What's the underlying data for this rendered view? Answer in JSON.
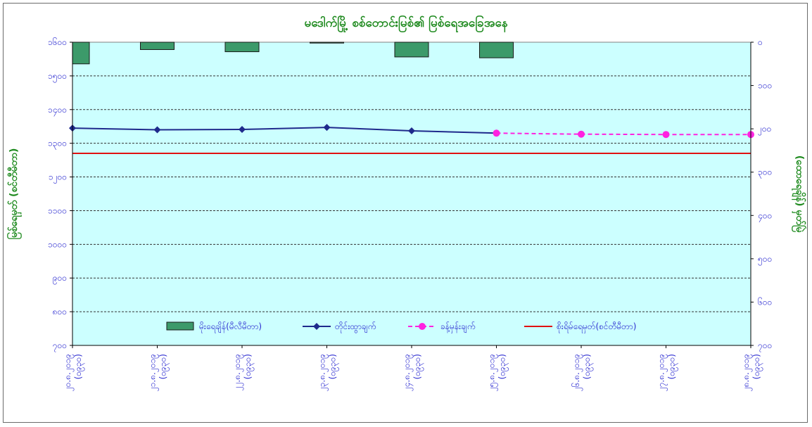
{
  "chart_data": {
    "type": "bar",
    "title": "မဒေါက်မြို့ စစ်တောင်းမြစ်၏ မြစ်ရေအခြေအနေ",
    "ylabel": "မြစ်ရေမှတ် (စင်တီမီတာ)",
    "y2label": "(ထောရေချိန်) မှတ်မြဲ",
    "ylim": [
      700,
      1600
    ],
    "y2lim": [
      0,
      700
    ],
    "y2_inverted": true,
    "yticks": [
      "၁၆၀၀",
      "၁၅၀၀",
      "၁၄၀၀",
      "၁၃၀၀",
      "၁၂၀၀",
      "၁၁၀၀",
      "၁၀၀၀",
      "၉၀၀",
      "၈၀၀",
      "၇၀၀"
    ],
    "y2ticks": [
      "၀",
      "၁၀၀",
      "၂၀၀",
      "၃၀၀",
      "၄၀၀",
      "၅၀၀",
      "၆၀၀",
      "၇၀၀"
    ],
    "categories": [
      "၂၀.၈.၂၀၁၉ (၀၉၃၀)",
      "၂၁.၈.၂၀၁၉ (၀၉၃၀)",
      "၂၂.၈.၂၀၁၉ (၀၉၃၀)",
      "၂၃.၈.၂၀၁၉ (၀၉၃၀)",
      "၂၄.၈.၂၀၁၉ (၀၉၃၀)",
      "၂၅.၈.၂၀၁၉ (၀၉၃၀)",
      "၂၆.၈.၂၀၁၉ (၀၉၃၀)",
      "၂၇.၈.၂၀၁၉ (၀၉၃၀)",
      "၂၈.၈.၂၀၁၉ (၀၉၃၀)"
    ],
    "series": [
      {
        "name": "မိုးရေချိန်(မီလီမီတာ)",
        "type": "bar",
        "axis": "right",
        "color": "#3c9a6a",
        "values": [
          50,
          17,
          22,
          2,
          34,
          36,
          null,
          null,
          null
        ]
      },
      {
        "name": "တိုင်းထွာချက်",
        "type": "line",
        "axis": "left",
        "color": "#1f2a8c",
        "values": [
          1345,
          1340,
          1341,
          1347,
          1337,
          1330,
          null,
          null,
          null
        ]
      },
      {
        "name": "ခန့်မှန်းချက်",
        "type": "line-dashed",
        "axis": "left",
        "color": "#ff22e0",
        "values": [
          null,
          null,
          null,
          null,
          null,
          1330,
          1327,
          1326,
          1326
        ]
      },
      {
        "name": "စိုးရိမ်ရေမှတ်(စင်တီမီတာ)",
        "type": "hline",
        "axis": "left",
        "color": "#e01010",
        "value": 1270
      }
    ],
    "grid": true,
    "grid_style": "dashed",
    "background": "#ccffff",
    "legend_position": "bottom"
  }
}
